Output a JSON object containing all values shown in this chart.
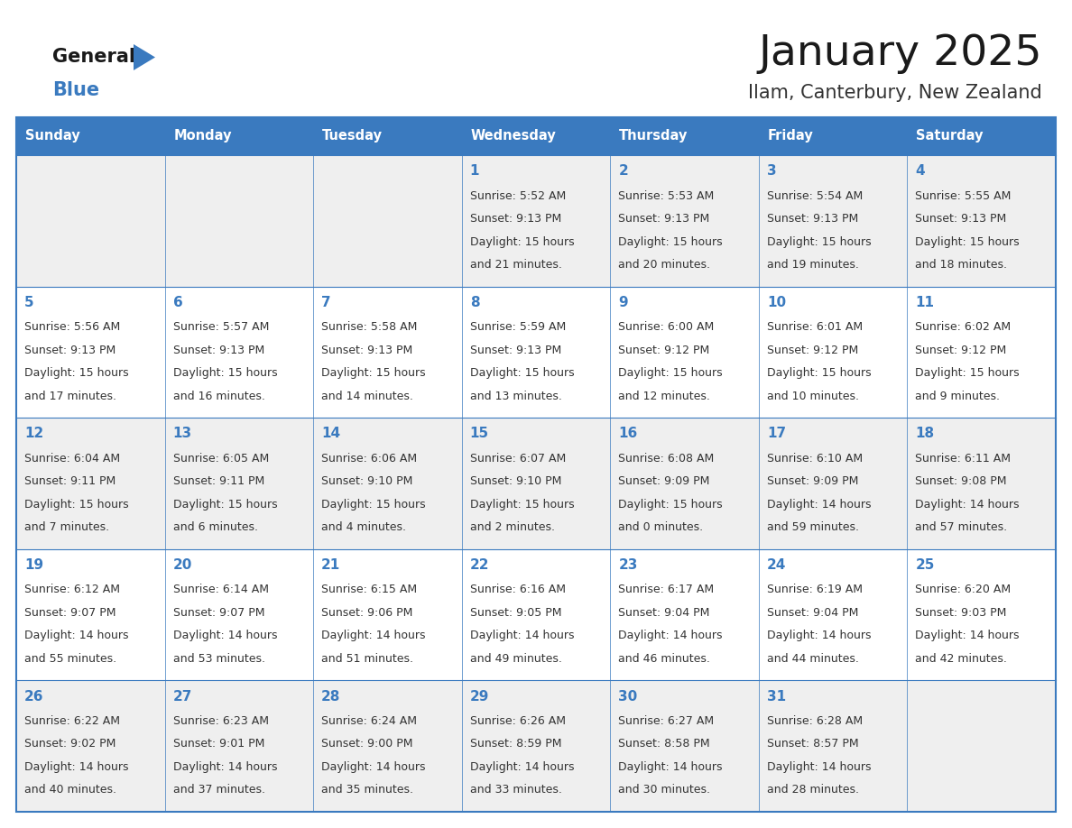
{
  "title": "January 2025",
  "subtitle": "Ilam, Canterbury, New Zealand",
  "header_bg": "#3a7abf",
  "header_text_color": "#ffffff",
  "day_names": [
    "Sunday",
    "Monday",
    "Tuesday",
    "Wednesday",
    "Thursday",
    "Friday",
    "Saturday"
  ],
  "day_number_color": "#3a7abf",
  "cell_text_color": "#333333",
  "row_bg_colors": [
    "#efefef",
    "#ffffff",
    "#efefef",
    "#ffffff",
    "#efefef"
  ],
  "border_color": "#3a7abf",
  "logo_general_color": "#1a1a1a",
  "logo_blue_color": "#3a7abf",
  "logo_triangle_color": "#3a7abf",
  "calendar": [
    [
      null,
      null,
      null,
      {
        "day": "1",
        "sunrise": "5:52 AM",
        "sunset": "9:13 PM",
        "dl_hours": "15 hours",
        "dl_min": "and 21 minutes."
      },
      {
        "day": "2",
        "sunrise": "5:53 AM",
        "sunset": "9:13 PM",
        "dl_hours": "15 hours",
        "dl_min": "and 20 minutes."
      },
      {
        "day": "3",
        "sunrise": "5:54 AM",
        "sunset": "9:13 PM",
        "dl_hours": "15 hours",
        "dl_min": "and 19 minutes."
      },
      {
        "day": "4",
        "sunrise": "5:55 AM",
        "sunset": "9:13 PM",
        "dl_hours": "15 hours",
        "dl_min": "and 18 minutes."
      }
    ],
    [
      {
        "day": "5",
        "sunrise": "5:56 AM",
        "sunset": "9:13 PM",
        "dl_hours": "15 hours",
        "dl_min": "and 17 minutes."
      },
      {
        "day": "6",
        "sunrise": "5:57 AM",
        "sunset": "9:13 PM",
        "dl_hours": "15 hours",
        "dl_min": "and 16 minutes."
      },
      {
        "day": "7",
        "sunrise": "5:58 AM",
        "sunset": "9:13 PM",
        "dl_hours": "15 hours",
        "dl_min": "and 14 minutes."
      },
      {
        "day": "8",
        "sunrise": "5:59 AM",
        "sunset": "9:13 PM",
        "dl_hours": "15 hours",
        "dl_min": "and 13 minutes."
      },
      {
        "day": "9",
        "sunrise": "6:00 AM",
        "sunset": "9:12 PM",
        "dl_hours": "15 hours",
        "dl_min": "and 12 minutes."
      },
      {
        "day": "10",
        "sunrise": "6:01 AM",
        "sunset": "9:12 PM",
        "dl_hours": "15 hours",
        "dl_min": "and 10 minutes."
      },
      {
        "day": "11",
        "sunrise": "6:02 AM",
        "sunset": "9:12 PM",
        "dl_hours": "15 hours",
        "dl_min": "and 9 minutes."
      }
    ],
    [
      {
        "day": "12",
        "sunrise": "6:04 AM",
        "sunset": "9:11 PM",
        "dl_hours": "15 hours",
        "dl_min": "and 7 minutes."
      },
      {
        "day": "13",
        "sunrise": "6:05 AM",
        "sunset": "9:11 PM",
        "dl_hours": "15 hours",
        "dl_min": "and 6 minutes."
      },
      {
        "day": "14",
        "sunrise": "6:06 AM",
        "sunset": "9:10 PM",
        "dl_hours": "15 hours",
        "dl_min": "and 4 minutes."
      },
      {
        "day": "15",
        "sunrise": "6:07 AM",
        "sunset": "9:10 PM",
        "dl_hours": "15 hours",
        "dl_min": "and 2 minutes."
      },
      {
        "day": "16",
        "sunrise": "6:08 AM",
        "sunset": "9:09 PM",
        "dl_hours": "15 hours",
        "dl_min": "and 0 minutes."
      },
      {
        "day": "17",
        "sunrise": "6:10 AM",
        "sunset": "9:09 PM",
        "dl_hours": "14 hours",
        "dl_min": "and 59 minutes."
      },
      {
        "day": "18",
        "sunrise": "6:11 AM",
        "sunset": "9:08 PM",
        "dl_hours": "14 hours",
        "dl_min": "and 57 minutes."
      }
    ],
    [
      {
        "day": "19",
        "sunrise": "6:12 AM",
        "sunset": "9:07 PM",
        "dl_hours": "14 hours",
        "dl_min": "and 55 minutes."
      },
      {
        "day": "20",
        "sunrise": "6:14 AM",
        "sunset": "9:07 PM",
        "dl_hours": "14 hours",
        "dl_min": "and 53 minutes."
      },
      {
        "day": "21",
        "sunrise": "6:15 AM",
        "sunset": "9:06 PM",
        "dl_hours": "14 hours",
        "dl_min": "and 51 minutes."
      },
      {
        "day": "22",
        "sunrise": "6:16 AM",
        "sunset": "9:05 PM",
        "dl_hours": "14 hours",
        "dl_min": "and 49 minutes."
      },
      {
        "day": "23",
        "sunrise": "6:17 AM",
        "sunset": "9:04 PM",
        "dl_hours": "14 hours",
        "dl_min": "and 46 minutes."
      },
      {
        "day": "24",
        "sunrise": "6:19 AM",
        "sunset": "9:04 PM",
        "dl_hours": "14 hours",
        "dl_min": "and 44 minutes."
      },
      {
        "day": "25",
        "sunrise": "6:20 AM",
        "sunset": "9:03 PM",
        "dl_hours": "14 hours",
        "dl_min": "and 42 minutes."
      }
    ],
    [
      {
        "day": "26",
        "sunrise": "6:22 AM",
        "sunset": "9:02 PM",
        "dl_hours": "14 hours",
        "dl_min": "and 40 minutes."
      },
      {
        "day": "27",
        "sunrise": "6:23 AM",
        "sunset": "9:01 PM",
        "dl_hours": "14 hours",
        "dl_min": "and 37 minutes."
      },
      {
        "day": "28",
        "sunrise": "6:24 AM",
        "sunset": "9:00 PM",
        "dl_hours": "14 hours",
        "dl_min": "and 35 minutes."
      },
      {
        "day": "29",
        "sunrise": "6:26 AM",
        "sunset": "8:59 PM",
        "dl_hours": "14 hours",
        "dl_min": "and 33 minutes."
      },
      {
        "day": "30",
        "sunrise": "6:27 AM",
        "sunset": "8:58 PM",
        "dl_hours": "14 hours",
        "dl_min": "and 30 minutes."
      },
      {
        "day": "31",
        "sunrise": "6:28 AM",
        "sunset": "8:57 PM",
        "dl_hours": "14 hours",
        "dl_min": "and 28 minutes."
      },
      null
    ]
  ]
}
